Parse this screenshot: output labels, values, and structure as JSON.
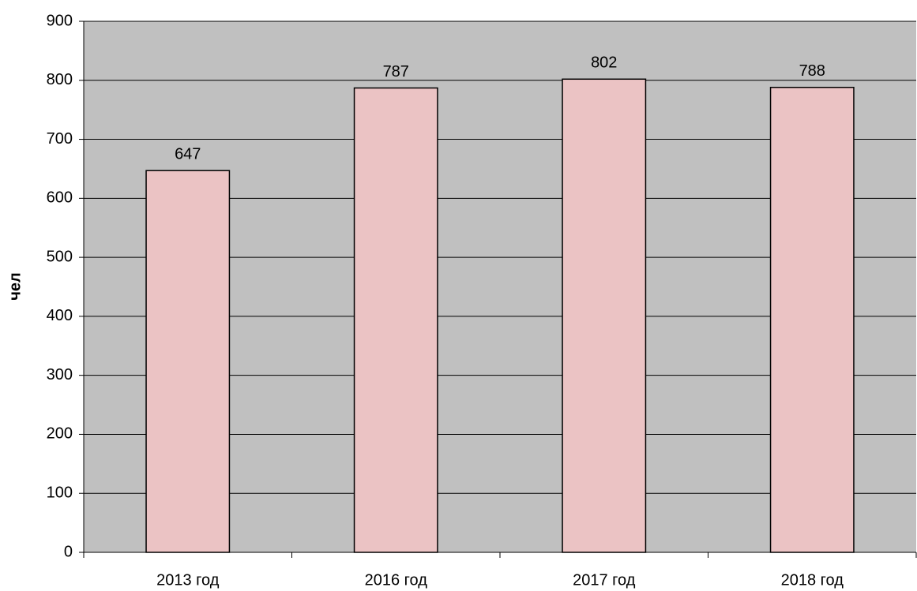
{
  "chart_data": {
    "type": "bar",
    "y_label": "чел",
    "categories": [
      "2013 год",
      "2016 год",
      "2017 год",
      "2018 год"
    ],
    "values": [
      647,
      787,
      802,
      788
    ],
    "color": "#ebc3c4",
    "plot_background": "#c0c0c0",
    "ylim": [
      0,
      900
    ],
    "yticks": [
      0,
      100,
      200,
      300,
      400,
      500,
      600,
      700,
      800,
      900
    ],
    "grid": true
  }
}
